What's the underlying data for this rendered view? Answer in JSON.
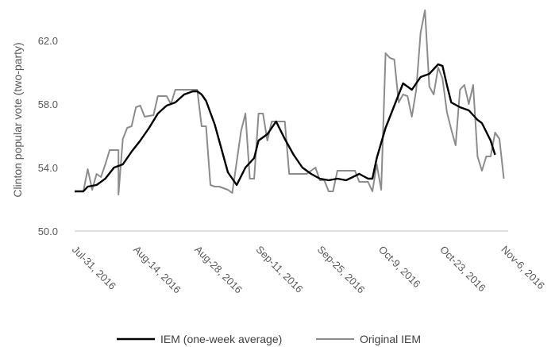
{
  "chart_data": {
    "type": "line",
    "title": "",
    "xlabel": "",
    "ylabel": "Clinton popular vote (two-party)",
    "ylim": [
      50.0,
      64.0
    ],
    "yticks": [
      "50.0",
      "54.0",
      "58.0",
      "62.0"
    ],
    "ytick_values": [
      50.0,
      54.0,
      58.0,
      62.0
    ],
    "grid": false,
    "legend_position": "bottom",
    "x_start": "2016-07-31",
    "x_end": "2016-11-07",
    "xticks": [
      "Jul-31, 2016",
      "Aug-14, 2016",
      "Aug-28, 2016",
      "Sep-11, 2016",
      "Sep-25, 2016",
      "Oct-9, 2016",
      "Oct-23, 2016",
      "Nov-6, 2016"
    ],
    "xtick_dates": [
      "2016-07-31",
      "2016-08-14",
      "2016-08-28",
      "2016-09-11",
      "2016-09-25",
      "2016-10-09",
      "2016-10-23",
      "2016-11-06"
    ],
    "series": [
      {
        "name": "IEM (one-week average)",
        "color": "#000000",
        "points": [
          [
            "2016-07-31",
            52.5
          ],
          [
            "2016-08-02",
            52.5
          ],
          [
            "2016-08-03",
            52.8
          ],
          [
            "2016-08-05",
            52.9
          ],
          [
            "2016-08-07",
            53.3
          ],
          [
            "2016-08-09",
            54.0
          ],
          [
            "2016-08-11",
            54.2
          ],
          [
            "2016-08-13",
            55.0
          ],
          [
            "2016-08-15",
            55.7
          ],
          [
            "2016-08-17",
            56.5
          ],
          [
            "2016-08-19",
            57.4
          ],
          [
            "2016-08-21",
            57.9
          ],
          [
            "2016-08-23",
            58.1
          ],
          [
            "2016-08-25",
            58.6
          ],
          [
            "2016-08-27",
            58.8
          ],
          [
            "2016-08-28",
            58.8
          ],
          [
            "2016-08-29",
            58.6
          ],
          [
            "2016-08-30",
            58.2
          ],
          [
            "2016-09-01",
            56.7
          ],
          [
            "2016-09-03",
            54.7
          ],
          [
            "2016-09-04",
            53.7
          ],
          [
            "2016-09-06",
            52.9
          ],
          [
            "2016-09-08",
            54.0
          ],
          [
            "2016-09-10",
            54.6
          ],
          [
            "2016-09-11",
            55.7
          ],
          [
            "2016-09-13",
            56.1
          ],
          [
            "2016-09-15",
            56.9
          ],
          [
            "2016-09-17",
            55.8
          ],
          [
            "2016-09-19",
            54.8
          ],
          [
            "2016-09-21",
            54.0
          ],
          [
            "2016-09-23",
            53.6
          ],
          [
            "2016-09-25",
            53.3
          ],
          [
            "2016-09-27",
            53.2
          ],
          [
            "2016-09-29",
            53.3
          ],
          [
            "2016-10-01",
            53.2
          ],
          [
            "2016-10-04",
            53.6
          ],
          [
            "2016-10-06",
            53.3
          ],
          [
            "2016-10-07",
            53.3
          ],
          [
            "2016-10-08",
            54.6
          ],
          [
            "2016-10-10",
            56.5
          ],
          [
            "2016-10-12",
            57.9
          ],
          [
            "2016-10-14",
            59.3
          ],
          [
            "2016-10-16",
            58.9
          ],
          [
            "2016-10-18",
            59.7
          ],
          [
            "2016-10-20",
            59.9
          ],
          [
            "2016-10-22",
            60.5
          ],
          [
            "2016-10-23",
            60.4
          ],
          [
            "2016-10-24",
            59.2
          ],
          [
            "2016-10-25",
            58.1
          ],
          [
            "2016-10-27",
            57.8
          ],
          [
            "2016-10-29",
            57.6
          ],
          [
            "2016-10-31",
            57.0
          ],
          [
            "2016-11-01",
            56.8
          ],
          [
            "2016-11-03",
            55.7
          ],
          [
            "2016-11-04",
            54.8
          ]
        ]
      },
      {
        "name": "Original IEM",
        "color": "#8c8c8c",
        "points": [
          [
            "2016-07-31",
            52.5
          ],
          [
            "2016-08-02",
            52.5
          ],
          [
            "2016-08-03",
            53.9
          ],
          [
            "2016-08-04",
            52.6
          ],
          [
            "2016-08-05",
            53.6
          ],
          [
            "2016-08-06",
            53.4
          ],
          [
            "2016-08-07",
            54.2
          ],
          [
            "2016-08-08",
            55.1
          ],
          [
            "2016-08-10",
            55.1
          ],
          [
            "2016-08-10",
            52.3
          ],
          [
            "2016-08-11",
            55.8
          ],
          [
            "2016-08-12",
            56.5
          ],
          [
            "2016-08-13",
            56.6
          ],
          [
            "2016-08-14",
            57.8
          ],
          [
            "2016-08-15",
            57.9
          ],
          [
            "2016-08-16",
            57.2
          ],
          [
            "2016-08-18",
            57.3
          ],
          [
            "2016-08-19",
            58.5
          ],
          [
            "2016-08-21",
            58.5
          ],
          [
            "2016-08-22",
            58.0
          ],
          [
            "2016-08-23",
            58.9
          ],
          [
            "2016-08-25",
            58.9
          ],
          [
            "2016-08-28",
            58.9
          ],
          [
            "2016-08-29",
            56.6
          ],
          [
            "2016-08-30",
            56.6
          ],
          [
            "2016-08-31",
            52.9
          ],
          [
            "2016-09-01",
            52.8
          ],
          [
            "2016-09-02",
            52.8
          ],
          [
            "2016-09-04",
            52.6
          ],
          [
            "2016-09-05",
            52.4
          ],
          [
            "2016-09-07",
            56.3
          ],
          [
            "2016-09-08",
            57.4
          ],
          [
            "2016-09-09",
            53.3
          ],
          [
            "2016-09-10",
            53.3
          ],
          [
            "2016-09-11",
            57.4
          ],
          [
            "2016-09-12",
            57.4
          ],
          [
            "2016-09-13",
            55.7
          ],
          [
            "2016-09-14",
            56.9
          ],
          [
            "2016-09-15",
            56.9
          ],
          [
            "2016-09-17",
            56.9
          ],
          [
            "2016-09-18",
            53.6
          ],
          [
            "2016-09-20",
            53.6
          ],
          [
            "2016-09-22",
            53.6
          ],
          [
            "2016-09-24",
            54.0
          ],
          [
            "2016-09-25",
            53.2
          ],
          [
            "2016-09-26",
            53.2
          ],
          [
            "2016-09-27",
            52.5
          ],
          [
            "2016-09-28",
            52.5
          ],
          [
            "2016-09-29",
            53.8
          ],
          [
            "2016-10-01",
            53.8
          ],
          [
            "2016-10-03",
            53.8
          ],
          [
            "2016-10-04",
            53.1
          ],
          [
            "2016-10-06",
            53.1
          ],
          [
            "2016-10-07",
            52.5
          ],
          [
            "2016-10-08",
            54.2
          ],
          [
            "2016-10-09",
            52.6
          ],
          [
            "2016-10-10",
            61.2
          ],
          [
            "2016-10-11",
            60.9
          ],
          [
            "2016-10-12",
            60.8
          ],
          [
            "2016-10-13",
            58.1
          ],
          [
            "2016-10-14",
            58.6
          ],
          [
            "2016-10-15",
            58.5
          ],
          [
            "2016-10-16",
            57.2
          ],
          [
            "2016-10-17",
            58.9
          ],
          [
            "2016-10-18",
            62.5
          ],
          [
            "2016-10-19",
            63.9
          ],
          [
            "2016-10-20",
            59.1
          ],
          [
            "2016-10-21",
            58.6
          ],
          [
            "2016-10-22",
            60.3
          ],
          [
            "2016-10-23",
            59.6
          ],
          [
            "2016-10-24",
            57.5
          ],
          [
            "2016-10-25",
            56.4
          ],
          [
            "2016-10-26",
            55.4
          ],
          [
            "2016-10-27",
            58.9
          ],
          [
            "2016-10-28",
            59.2
          ],
          [
            "2016-10-29",
            58.0
          ],
          [
            "2016-10-30",
            59.2
          ],
          [
            "2016-10-31",
            54.7
          ],
          [
            "2016-11-01",
            53.8
          ],
          [
            "2016-11-02",
            54.7
          ],
          [
            "2016-11-03",
            54.7
          ],
          [
            "2016-11-04",
            56.2
          ],
          [
            "2016-11-05",
            55.8
          ],
          [
            "2016-11-06",
            53.3
          ]
        ]
      }
    ]
  }
}
